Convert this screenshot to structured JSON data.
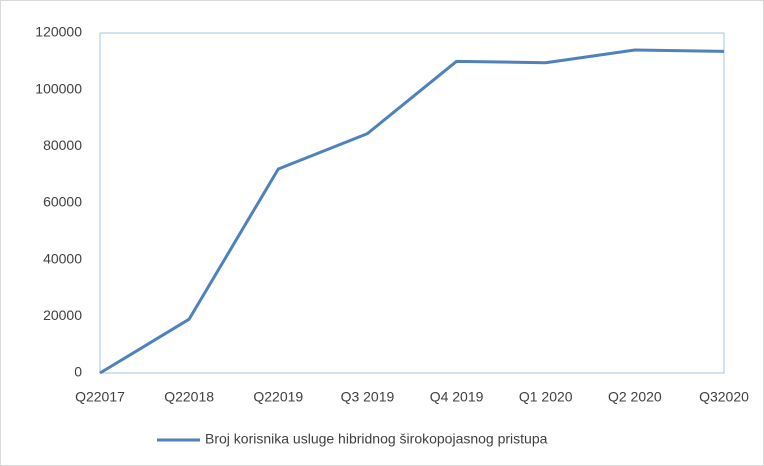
{
  "chart_data": {
    "type": "line",
    "categories": [
      "Q22017",
      "Q22018",
      "Q22019",
      "Q3 2019",
      "Q4 2019",
      "Q1 2020",
      "Q2 2020",
      "Q32020"
    ],
    "series": [
      {
        "name": "Broj korisnika usluge hibridnog širokopojasnog pristupa",
        "color": "#4f81bd",
        "values": [
          0,
          19000,
          72000,
          84500,
          110000,
          109500,
          114000,
          113500
        ]
      }
    ],
    "ylim": [
      0,
      120000
    ],
    "yticks": [
      0,
      20000,
      40000,
      60000,
      80000,
      100000,
      120000
    ],
    "grid": false,
    "legend": "bottom"
  }
}
